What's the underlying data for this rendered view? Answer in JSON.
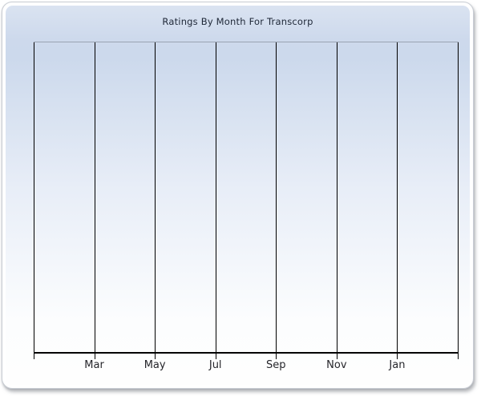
{
  "window": {
    "title": "Ratings By Month For Transcorp"
  },
  "chart_data": {
    "type": "line",
    "title": "Ratings By Month For Transcorp",
    "categories": [
      "Mar",
      "May",
      "Jul",
      "Sep",
      "Nov",
      "Jan"
    ],
    "series": [],
    "xlabel": "",
    "ylabel": "",
    "x_gridline_count": 8,
    "labeled_gridline_indices": [
      1,
      2,
      3,
      4,
      5,
      6
    ],
    "grid": "vertical-only",
    "legend": "none",
    "plot_empty": true
  },
  "colors": {
    "title_text": "#1e2737",
    "axis_label_text": "#26262b",
    "gridline": "#000000",
    "axis_line": "#000000",
    "plot_top_border": "#9aa3b2",
    "surface_gradient_top": "#dae3f1",
    "surface_gradient_upper": "#ccd9ec",
    "surface_gradient_mid": "#e7edf7",
    "surface_gradient_bottom": "#fefefe",
    "frame": "#ffffff"
  }
}
